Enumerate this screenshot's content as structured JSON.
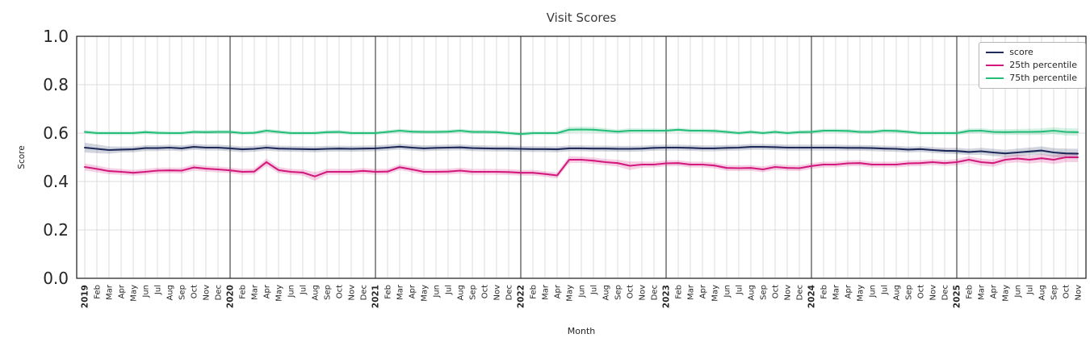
{
  "colors": {
    "grid": "#dcdcdc",
    "year_line": "#3a3a3a",
    "spine": "#2b2b2b",
    "tick_text": "#262626",
    "title_text": "#3a3a3a"
  },
  "chart_data": {
    "type": "line",
    "title": "Visit Scores",
    "xlabel": "Month",
    "ylabel": "Score",
    "ylim": [
      0.0,
      1.0
    ],
    "yticks": [
      0.0,
      0.2,
      0.4,
      0.6,
      0.8,
      1.0
    ],
    "grid": true,
    "legend_position": "upper right",
    "x_labels": [
      "2019",
      "Feb",
      "Mar",
      "Apr",
      "May",
      "Jun",
      "Jul",
      "Aug",
      "Sep",
      "Oct",
      "Nov",
      "Dec",
      "2020",
      "Feb",
      "Mar",
      "Apr",
      "May",
      "Jun",
      "Jul",
      "Aug",
      "Sep",
      "Oct",
      "Nov",
      "Dec",
      "2021",
      "Feb",
      "Mar",
      "Apr",
      "May",
      "Jun",
      "Jul",
      "Aug",
      "Sep",
      "Oct",
      "Nov",
      "Dec",
      "2022",
      "Feb",
      "Mar",
      "Apr",
      "May",
      "Jun",
      "Jul",
      "Aug",
      "Sep",
      "Oct",
      "Nov",
      "Dec",
      "2023",
      "Feb",
      "Mar",
      "Apr",
      "May",
      "Jun",
      "Jul",
      "Aug",
      "Sep",
      "Oct",
      "Nov",
      "Dec",
      "2024",
      "Feb",
      "Mar",
      "Apr",
      "May",
      "Jun",
      "Jul",
      "Aug",
      "Sep",
      "Oct",
      "Nov",
      "Dec",
      "2025",
      "Feb",
      "Mar",
      "Apr",
      "May",
      "Jun",
      "Jul",
      "Aug",
      "Sep",
      "Oct",
      "Nov"
    ],
    "year_tick_indices": [
      0,
      12,
      24,
      36,
      48,
      60,
      72
    ],
    "series": [
      {
        "name": "score",
        "color": "#1e2a5a",
        "values": [
          0.54,
          0.535,
          0.53,
          0.532,
          0.533,
          0.538,
          0.538,
          0.54,
          0.537,
          0.543,
          0.54,
          0.54,
          0.537,
          0.533,
          0.535,
          0.54,
          0.536,
          0.535,
          0.534,
          0.533,
          0.535,
          0.536,
          0.535,
          0.536,
          0.537,
          0.54,
          0.544,
          0.54,
          0.537,
          0.539,
          0.54,
          0.541,
          0.538,
          0.537,
          0.536,
          0.536,
          0.535,
          0.534,
          0.534,
          0.533,
          0.537,
          0.537,
          0.536,
          0.536,
          0.535,
          0.535,
          0.536,
          0.539,
          0.54,
          0.54,
          0.539,
          0.537,
          0.537,
          0.539,
          0.54,
          0.543,
          0.543,
          0.542,
          0.54,
          0.54,
          0.54,
          0.54,
          0.54,
          0.539,
          0.539,
          0.538,
          0.536,
          0.535,
          0.532,
          0.534,
          0.53,
          0.527,
          0.526,
          0.522,
          0.525,
          0.52,
          0.516,
          0.52,
          0.524,
          0.528,
          0.52,
          0.516,
          0.515
        ],
        "band": [
          0.02,
          0.018,
          0.015,
          0.012,
          0.012,
          0.012,
          0.012,
          0.012,
          0.012,
          0.012,
          0.012,
          0.012,
          0.012,
          0.012,
          0.012,
          0.012,
          0.012,
          0.012,
          0.012,
          0.012,
          0.012,
          0.012,
          0.012,
          0.012,
          0.012,
          0.012,
          0.012,
          0.012,
          0.012,
          0.012,
          0.012,
          0.012,
          0.012,
          0.012,
          0.012,
          0.012,
          0.012,
          0.012,
          0.012,
          0.012,
          0.012,
          0.012,
          0.012,
          0.012,
          0.012,
          0.012,
          0.012,
          0.012,
          0.012,
          0.012,
          0.012,
          0.012,
          0.012,
          0.012,
          0.012,
          0.012,
          0.012,
          0.012,
          0.012,
          0.012,
          0.012,
          0.012,
          0.012,
          0.012,
          0.012,
          0.012,
          0.012,
          0.012,
          0.012,
          0.012,
          0.012,
          0.012,
          0.013,
          0.013,
          0.014,
          0.015,
          0.015,
          0.016,
          0.016,
          0.017,
          0.018,
          0.02,
          0.02
        ]
      },
      {
        "name": "25th percentile",
        "color": "#d3197d",
        "values": [
          0.46,
          0.452,
          0.443,
          0.44,
          0.436,
          0.44,
          0.445,
          0.446,
          0.445,
          0.458,
          0.453,
          0.45,
          0.446,
          0.44,
          0.441,
          0.48,
          0.447,
          0.44,
          0.437,
          0.421,
          0.44,
          0.44,
          0.44,
          0.444,
          0.44,
          0.441,
          0.459,
          0.45,
          0.44,
          0.44,
          0.441,
          0.445,
          0.44,
          0.44,
          0.44,
          0.439,
          0.436,
          0.436,
          0.431,
          0.425,
          0.49,
          0.49,
          0.486,
          0.48,
          0.476,
          0.465,
          0.47,
          0.47,
          0.475,
          0.476,
          0.47,
          0.47,
          0.466,
          0.456,
          0.455,
          0.456,
          0.45,
          0.46,
          0.456,
          0.455,
          0.464,
          0.47,
          0.47,
          0.475,
          0.476,
          0.47,
          0.47,
          0.47,
          0.475,
          0.476,
          0.48,
          0.476,
          0.48,
          0.49,
          0.48,
          0.476,
          0.49,
          0.495,
          0.49,
          0.496,
          0.49,
          0.5,
          0.5
        ],
        "band": [
          0.015,
          0.014,
          0.013,
          0.012,
          0.012,
          0.012,
          0.012,
          0.012,
          0.012,
          0.013,
          0.012,
          0.012,
          0.012,
          0.012,
          0.012,
          0.015,
          0.013,
          0.012,
          0.013,
          0.018,
          0.012,
          0.012,
          0.012,
          0.012,
          0.012,
          0.012,
          0.012,
          0.012,
          0.012,
          0.012,
          0.012,
          0.012,
          0.012,
          0.012,
          0.012,
          0.012,
          0.012,
          0.012,
          0.012,
          0.012,
          0.014,
          0.013,
          0.013,
          0.013,
          0.014,
          0.018,
          0.013,
          0.012,
          0.012,
          0.012,
          0.012,
          0.012,
          0.012,
          0.012,
          0.012,
          0.012,
          0.012,
          0.012,
          0.012,
          0.012,
          0.012,
          0.012,
          0.012,
          0.012,
          0.012,
          0.012,
          0.012,
          0.012,
          0.012,
          0.012,
          0.012,
          0.012,
          0.013,
          0.014,
          0.014,
          0.015,
          0.015,
          0.016,
          0.016,
          0.017,
          0.018,
          0.02,
          0.02
        ]
      },
      {
        "name": "75th percentile",
        "color": "#25bd7a",
        "values": [
          0.605,
          0.6,
          0.6,
          0.6,
          0.6,
          0.604,
          0.601,
          0.6,
          0.6,
          0.605,
          0.604,
          0.605,
          0.605,
          0.6,
          0.601,
          0.61,
          0.605,
          0.6,
          0.6,
          0.6,
          0.604,
          0.605,
          0.6,
          0.6,
          0.6,
          0.605,
          0.61,
          0.606,
          0.605,
          0.605,
          0.606,
          0.61,
          0.605,
          0.605,
          0.604,
          0.6,
          0.596,
          0.6,
          0.6,
          0.6,
          0.614,
          0.615,
          0.614,
          0.61,
          0.606,
          0.61,
          0.61,
          0.61,
          0.61,
          0.614,
          0.61,
          0.61,
          0.609,
          0.605,
          0.6,
          0.605,
          0.6,
          0.605,
          0.6,
          0.604,
          0.605,
          0.61,
          0.61,
          0.609,
          0.605,
          0.605,
          0.61,
          0.609,
          0.605,
          0.6,
          0.6,
          0.6,
          0.6,
          0.609,
          0.61,
          0.605,
          0.604,
          0.605,
          0.605,
          0.606,
          0.61,
          0.605,
          0.604
        ],
        "band": [
          0.008,
          0.008,
          0.008,
          0.008,
          0.008,
          0.008,
          0.008,
          0.008,
          0.008,
          0.008,
          0.008,
          0.008,
          0.008,
          0.008,
          0.008,
          0.008,
          0.008,
          0.008,
          0.008,
          0.008,
          0.008,
          0.008,
          0.008,
          0.008,
          0.008,
          0.008,
          0.008,
          0.008,
          0.008,
          0.008,
          0.008,
          0.008,
          0.008,
          0.008,
          0.008,
          0.008,
          0.008,
          0.008,
          0.008,
          0.008,
          0.012,
          0.012,
          0.012,
          0.01,
          0.009,
          0.01,
          0.009,
          0.009,
          0.008,
          0.008,
          0.008,
          0.008,
          0.008,
          0.008,
          0.008,
          0.008,
          0.008,
          0.008,
          0.008,
          0.008,
          0.008,
          0.008,
          0.008,
          0.008,
          0.008,
          0.008,
          0.008,
          0.008,
          0.008,
          0.008,
          0.008,
          0.008,
          0.009,
          0.01,
          0.01,
          0.011,
          0.012,
          0.012,
          0.013,
          0.013,
          0.014,
          0.015,
          0.015
        ]
      }
    ]
  }
}
